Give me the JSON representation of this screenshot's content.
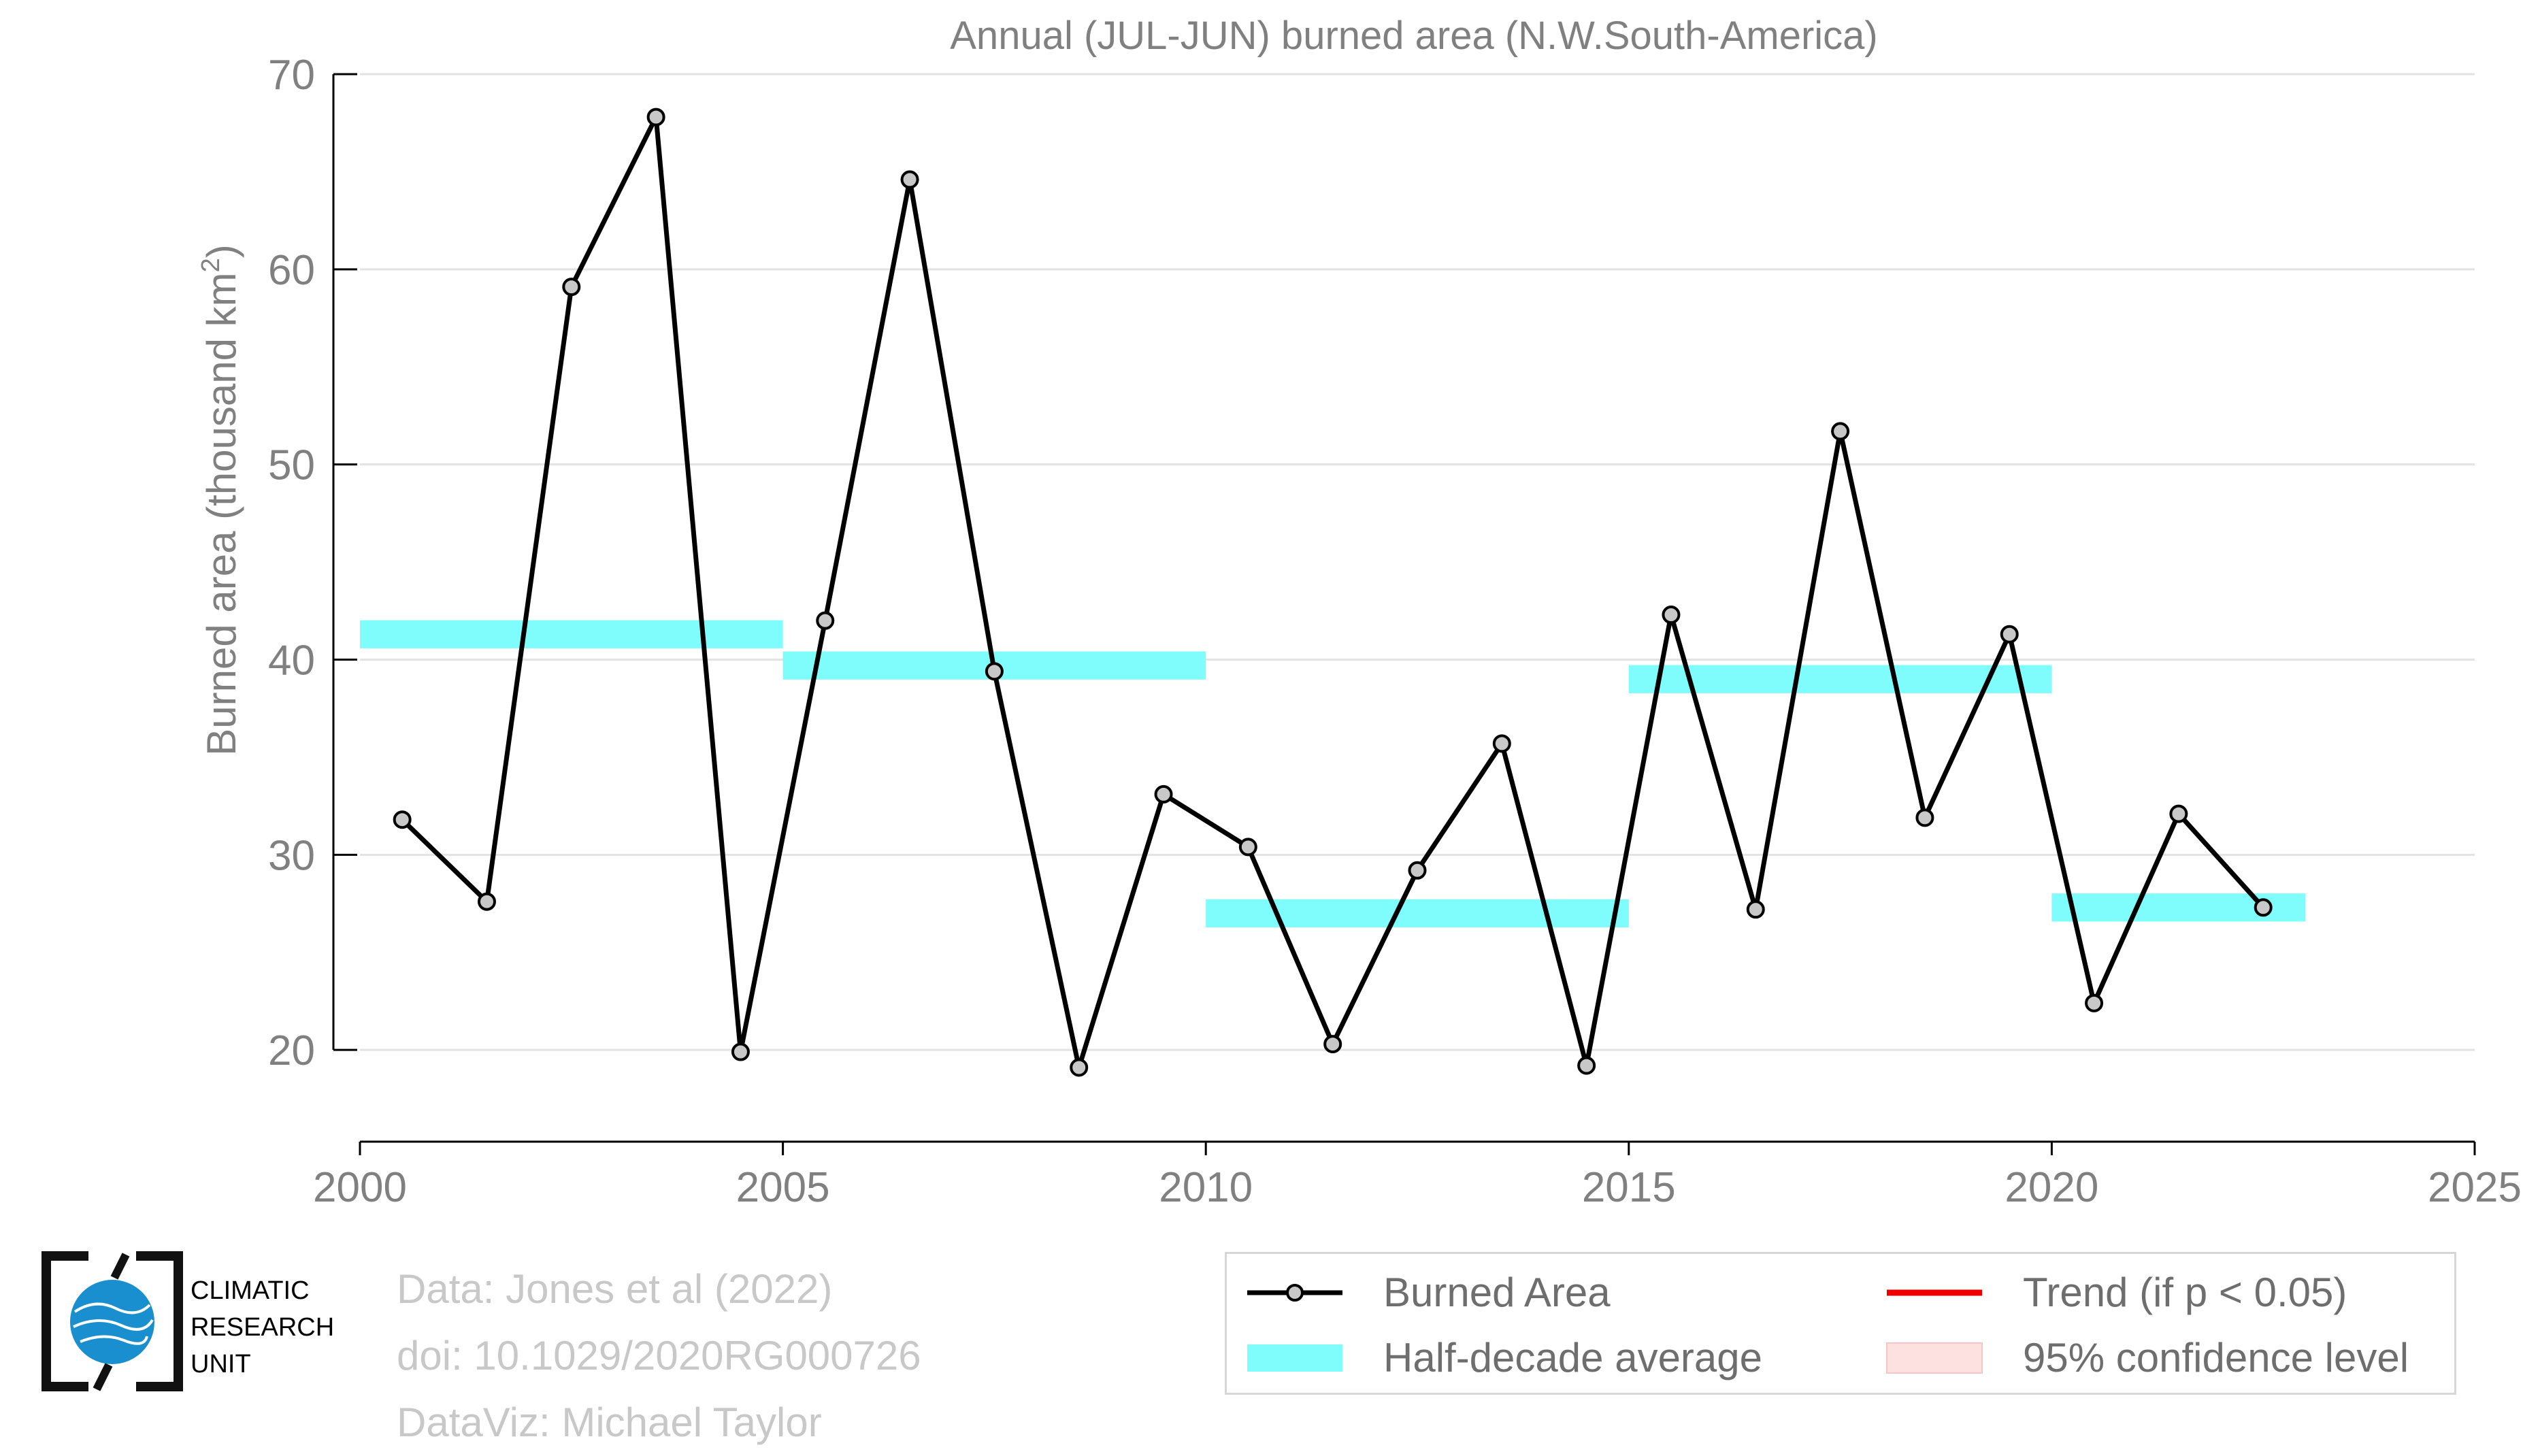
{
  "chart_data": {
    "type": "line",
    "title": "Annual (JUL-JUN) burned area (N.W.South-America)",
    "ylabel": "Burned area (thousand km²)",
    "ylabel_main": "Burned area (thousand km",
    "ylabel_sup": "2",
    "ylabel_end": ")",
    "xlim": [
      2000,
      2025
    ],
    "ylim": [
      15.3,
      70
    ],
    "xticks": [
      "2000",
      "2005",
      "2010",
      "2015",
      "2020",
      "2025"
    ],
    "yticks": [
      "20",
      "30",
      "40",
      "50",
      "60",
      "70"
    ],
    "grid": "horizontal",
    "series": [
      {
        "name": "Burned Area",
        "color": "#000000",
        "marker_fill": "#c8c8c8",
        "x": [
          2000.5,
          2001.5,
          2002.5,
          2003.5,
          2004.5,
          2005.5,
          2006.5,
          2007.5,
          2008.5,
          2009.5,
          2010.5,
          2011.5,
          2012.5,
          2013.5,
          2014.5,
          2015.5,
          2016.5,
          2017.5,
          2018.5,
          2019.5,
          2020.5,
          2021.5,
          2022.5
        ],
        "values": [
          31.8,
          27.6,
          59.1,
          67.8,
          19.9,
          42.0,
          64.6,
          39.4,
          19.1,
          33.1,
          30.4,
          20.3,
          29.2,
          35.7,
          19.2,
          42.3,
          27.2,
          51.7,
          31.9,
          41.3,
          22.4,
          32.1,
          27.3
        ]
      }
    ],
    "half_decade_average": {
      "name": "Half-decade average",
      "color": "#7ffcfc",
      "segments": [
        {
          "x0": 2000,
          "x1": 2005,
          "value": 41.3
        },
        {
          "x0": 2005,
          "x1": 2010,
          "value": 39.7
        },
        {
          "x0": 2010,
          "x1": 2015,
          "value": 27.0
        },
        {
          "x0": 2015,
          "x1": 2020,
          "value": 39.0
        },
        {
          "x0": 2020,
          "x1": 2023,
          "value": 27.3
        }
      ]
    },
    "legend": {
      "placement": "bottom-right",
      "items": [
        {
          "label": "Burned Area",
          "style": "line-marker",
          "color": "#000000"
        },
        {
          "label": "Trend (if p < 0.05)",
          "style": "line",
          "color": "#ee0000"
        },
        {
          "label": "Half-decade average",
          "style": "band",
          "color": "#7ffcfc"
        },
        {
          "label": "95% confidence level",
          "style": "band",
          "color": "#fde0e0"
        }
      ]
    }
  },
  "credits": {
    "line1": "Data: Jones et al (2022)",
    "line2": "doi: 10.1029/2020RG000726",
    "line3": "DataViz: Michael Taylor"
  },
  "logo": {
    "line1": "CLIMATIC",
    "line2": "RESEARCH",
    "line3": "UNIT",
    "accent": "#1a8fd0"
  }
}
